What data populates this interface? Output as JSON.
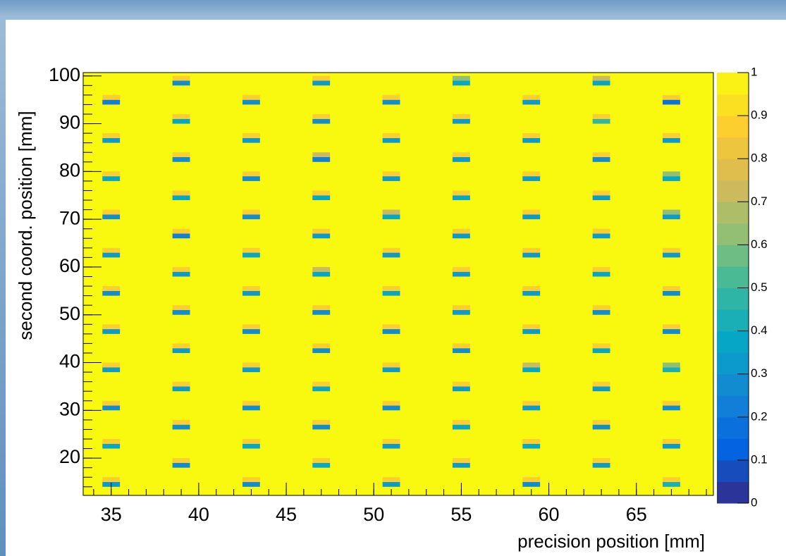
{
  "chart_data": {
    "type": "heatmap",
    "x_label": "precision position [mm]",
    "y_label": "second coord. position [mm]",
    "xlim": [
      33.4,
      69.4
    ],
    "ylim": [
      12.2,
      100.7
    ],
    "zlim": [
      0,
      1
    ],
    "xticks": [
      35,
      40,
      45,
      50,
      55,
      60,
      65
    ],
    "yticks": [
      20,
      30,
      40,
      50,
      60,
      70,
      80,
      90,
      100
    ],
    "zticks": [
      0,
      0.1,
      0.2,
      0.3,
      0.4,
      0.5,
      0.6,
      0.7,
      0.8,
      0.9,
      1
    ],
    "x_bin_width": 1,
    "y_bin_width": 1,
    "plot_color": "#f8f90f",
    "colormap": [
      "#352a87",
      "#0363e1",
      "#1485d4",
      "#06a7c6",
      "#38b99e",
      "#92bf73",
      "#d9ba56",
      "#fcce2e",
      "#f9fb0e"
    ],
    "colorbar_levels": 20,
    "cells": [
      [
        34.5,
        94,
        0.2
      ],
      [
        34.5,
        95,
        0.85
      ],
      [
        34.5,
        86,
        0.3
      ],
      [
        34.5,
        87,
        0.85
      ],
      [
        34.5,
        78,
        0.35
      ],
      [
        34.5,
        79,
        0.85
      ],
      [
        34.5,
        70,
        0.25
      ],
      [
        34.5,
        71,
        0.85
      ],
      [
        34.5,
        62,
        0.3
      ],
      [
        34.5,
        63,
        0.85
      ],
      [
        34.5,
        54,
        0.25
      ],
      [
        34.5,
        55,
        0.85
      ],
      [
        34.5,
        46,
        0.3
      ],
      [
        34.5,
        47,
        0.85
      ],
      [
        34.5,
        38,
        0.3
      ],
      [
        34.5,
        39,
        0.85
      ],
      [
        34.5,
        30,
        0.25
      ],
      [
        34.5,
        31,
        0.85
      ],
      [
        34.5,
        22,
        0.35
      ],
      [
        34.5,
        23,
        0.85
      ],
      [
        34.5,
        14,
        0.3
      ],
      [
        34.5,
        15,
        0.85
      ],
      [
        38.5,
        98,
        0.25
      ],
      [
        38.5,
        99,
        0.85
      ],
      [
        38.5,
        90,
        0.35
      ],
      [
        38.5,
        91,
        0.85
      ],
      [
        38.5,
        82,
        0.25
      ],
      [
        38.5,
        83,
        0.85
      ],
      [
        38.5,
        74,
        0.35
      ],
      [
        38.5,
        75,
        0.85
      ],
      [
        38.5,
        66,
        0.2
      ],
      [
        38.5,
        67,
        0.85
      ],
      [
        38.5,
        58,
        0.3
      ],
      [
        38.5,
        59,
        0.85
      ],
      [
        38.5,
        50,
        0.25
      ],
      [
        38.5,
        51,
        0.85
      ],
      [
        38.5,
        42,
        0.3
      ],
      [
        38.5,
        43,
        0.85
      ],
      [
        38.5,
        34,
        0.3
      ],
      [
        38.5,
        35,
        0.85
      ],
      [
        38.5,
        26,
        0.25
      ],
      [
        38.5,
        27,
        0.85
      ],
      [
        38.5,
        18,
        0.25
      ],
      [
        38.5,
        19,
        0.85
      ],
      [
        42.5,
        94,
        0.25
      ],
      [
        42.5,
        95,
        0.85
      ],
      [
        42.5,
        86,
        0.3
      ],
      [
        42.5,
        87,
        0.85
      ],
      [
        42.5,
        78,
        0.25
      ],
      [
        42.5,
        79,
        0.85
      ],
      [
        42.5,
        70,
        0.25
      ],
      [
        42.5,
        71,
        0.85
      ],
      [
        42.5,
        62,
        0.35
      ],
      [
        42.5,
        63,
        0.85
      ],
      [
        42.5,
        54,
        0.3
      ],
      [
        42.5,
        55,
        0.85
      ],
      [
        42.5,
        46,
        0.25
      ],
      [
        42.5,
        47,
        0.85
      ],
      [
        42.5,
        38,
        0.3
      ],
      [
        42.5,
        39,
        0.85
      ],
      [
        42.5,
        30,
        0.25
      ],
      [
        42.5,
        31,
        0.85
      ],
      [
        42.5,
        22,
        0.35
      ],
      [
        42.5,
        23,
        0.85
      ],
      [
        42.5,
        14,
        0.25
      ],
      [
        42.5,
        15,
        0.85
      ],
      [
        46.5,
        98,
        0.3
      ],
      [
        46.5,
        99,
        0.85
      ],
      [
        46.5,
        90,
        0.25
      ],
      [
        46.5,
        91,
        0.85
      ],
      [
        46.5,
        82,
        0.2
      ],
      [
        46.5,
        83,
        0.7
      ],
      [
        46.5,
        74,
        0.35
      ],
      [
        46.5,
        75,
        0.85
      ],
      [
        46.5,
        66,
        0.3
      ],
      [
        46.5,
        67,
        0.85
      ],
      [
        46.5,
        58,
        0.35
      ],
      [
        46.5,
        59,
        0.7
      ],
      [
        46.5,
        50,
        0.25
      ],
      [
        46.5,
        51,
        0.85
      ],
      [
        46.5,
        42,
        0.25
      ],
      [
        46.5,
        43,
        0.85
      ],
      [
        46.5,
        34,
        0.35
      ],
      [
        46.5,
        35,
        0.85
      ],
      [
        46.5,
        26,
        0.25
      ],
      [
        46.5,
        27,
        0.85
      ],
      [
        46.5,
        18,
        0.35
      ],
      [
        46.5,
        19,
        0.85
      ],
      [
        50.5,
        94,
        0.25
      ],
      [
        50.5,
        95,
        0.85
      ],
      [
        50.5,
        86,
        0.3
      ],
      [
        50.5,
        87,
        0.85
      ],
      [
        50.5,
        78,
        0.3
      ],
      [
        50.5,
        79,
        0.85
      ],
      [
        50.5,
        70,
        0.35
      ],
      [
        50.5,
        71,
        0.7
      ],
      [
        50.5,
        62,
        0.3
      ],
      [
        50.5,
        63,
        0.85
      ],
      [
        50.5,
        54,
        0.35
      ],
      [
        50.5,
        55,
        0.85
      ],
      [
        50.5,
        46,
        0.25
      ],
      [
        50.5,
        47,
        0.85
      ],
      [
        50.5,
        38,
        0.3
      ],
      [
        50.5,
        39,
        0.85
      ],
      [
        50.5,
        30,
        0.25
      ],
      [
        50.5,
        31,
        0.85
      ],
      [
        50.5,
        22,
        0.3
      ],
      [
        50.5,
        23,
        0.85
      ],
      [
        50.5,
        14,
        0.3
      ],
      [
        50.5,
        15,
        0.85
      ],
      [
        54.5,
        98,
        0.35
      ],
      [
        54.5,
        99,
        0.6
      ],
      [
        54.5,
        90,
        0.3
      ],
      [
        54.5,
        91,
        0.85
      ],
      [
        54.5,
        82,
        0.3
      ],
      [
        54.5,
        83,
        0.85
      ],
      [
        54.5,
        74,
        0.35
      ],
      [
        54.5,
        75,
        0.85
      ],
      [
        54.5,
        66,
        0.3
      ],
      [
        54.5,
        67,
        0.85
      ],
      [
        54.5,
        58,
        0.3
      ],
      [
        54.5,
        59,
        0.85
      ],
      [
        54.5,
        50,
        0.3
      ],
      [
        54.5,
        51,
        0.85
      ],
      [
        54.5,
        42,
        0.25
      ],
      [
        54.5,
        43,
        0.85
      ],
      [
        54.5,
        34,
        0.3
      ],
      [
        54.5,
        35,
        0.85
      ],
      [
        54.5,
        26,
        0.35
      ],
      [
        54.5,
        27,
        0.85
      ],
      [
        54.5,
        18,
        0.3
      ],
      [
        54.5,
        19,
        0.85
      ],
      [
        58.5,
        94,
        0.3
      ],
      [
        58.5,
        95,
        0.85
      ],
      [
        58.5,
        86,
        0.3
      ],
      [
        58.5,
        87,
        0.85
      ],
      [
        58.5,
        78,
        0.3
      ],
      [
        58.5,
        79,
        0.85
      ],
      [
        58.5,
        70,
        0.3
      ],
      [
        58.5,
        71,
        0.85
      ],
      [
        58.5,
        62,
        0.3
      ],
      [
        58.5,
        63,
        0.85
      ],
      [
        58.5,
        54,
        0.3
      ],
      [
        58.5,
        55,
        0.85
      ],
      [
        58.5,
        46,
        0.3
      ],
      [
        58.5,
        47,
        0.85
      ],
      [
        58.5,
        38,
        0.35
      ],
      [
        58.5,
        39,
        0.7
      ],
      [
        58.5,
        30,
        0.3
      ],
      [
        58.5,
        31,
        0.85
      ],
      [
        58.5,
        22,
        0.35
      ],
      [
        58.5,
        23,
        0.85
      ],
      [
        58.5,
        14,
        0.25
      ],
      [
        58.5,
        15,
        0.85
      ],
      [
        62.5,
        98,
        0.35
      ],
      [
        62.5,
        99,
        0.7
      ],
      [
        62.5,
        90,
        0.45
      ],
      [
        62.5,
        91,
        0.85
      ],
      [
        62.5,
        82,
        0.25
      ],
      [
        62.5,
        83,
        0.85
      ],
      [
        62.5,
        74,
        0.3
      ],
      [
        62.5,
        75,
        0.85
      ],
      [
        62.5,
        66,
        0.3
      ],
      [
        62.5,
        67,
        0.85
      ],
      [
        62.5,
        58,
        0.35
      ],
      [
        62.5,
        59,
        0.85
      ],
      [
        62.5,
        50,
        0.25
      ],
      [
        62.5,
        51,
        0.85
      ],
      [
        62.5,
        42,
        0.35
      ],
      [
        62.5,
        43,
        0.85
      ],
      [
        62.5,
        34,
        0.3
      ],
      [
        62.5,
        35,
        0.85
      ],
      [
        62.5,
        26,
        0.25
      ],
      [
        62.5,
        27,
        0.85
      ],
      [
        62.5,
        18,
        0.3
      ],
      [
        62.5,
        19,
        0.85
      ],
      [
        66.5,
        94,
        0.15
      ],
      [
        66.5,
        95,
        0.85
      ],
      [
        66.5,
        86,
        0.3
      ],
      [
        66.5,
        87,
        0.85
      ],
      [
        66.5,
        78,
        0.35
      ],
      [
        66.5,
        79,
        0.6
      ],
      [
        66.5,
        70,
        0.3
      ],
      [
        66.5,
        71,
        0.6
      ],
      [
        66.5,
        62,
        0.3
      ],
      [
        66.5,
        63,
        0.85
      ],
      [
        66.5,
        54,
        0.25
      ],
      [
        66.5,
        55,
        0.85
      ],
      [
        66.5,
        46,
        0.25
      ],
      [
        66.5,
        47,
        0.85
      ],
      [
        66.5,
        38,
        0.4
      ],
      [
        66.5,
        39,
        0.6
      ],
      [
        66.5,
        30,
        0.25
      ],
      [
        66.5,
        31,
        0.85
      ],
      [
        66.5,
        22,
        0.3
      ],
      [
        66.5,
        23,
        0.85
      ],
      [
        66.5,
        14,
        0.4
      ],
      [
        66.5,
        15,
        0.85
      ]
    ]
  }
}
